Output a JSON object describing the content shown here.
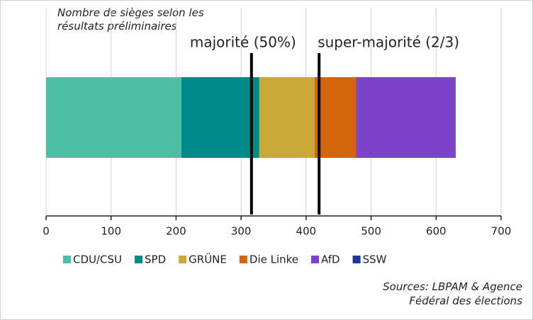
{
  "chart_data": {
    "type": "stacked-barh",
    "title": "Nombre de sièges selon les résultats préliminaires",
    "source": "Sources: LBPAM & Agence Fédéral des élections",
    "series": [
      {
        "name": "CDU/CSU",
        "color": "#4dbfa5",
        "values": [
          208
        ]
      },
      {
        "name": "SPD",
        "color": "#008b8b",
        "values": [
          120
        ]
      },
      {
        "name": "GRÜNE",
        "color": "#c9a838",
        "values": [
          85
        ]
      },
      {
        "name": "Die Linke",
        "color": "#d4650b",
        "values": [
          64
        ]
      },
      {
        "name": "AfD",
        "color": "#7b44c8",
        "values": [
          152
        ]
      },
      {
        "name": "SSW",
        "color": "#1b3a9c",
        "values": [
          1
        ]
      }
    ],
    "reference_lines": [
      {
        "value": 316,
        "label": "majorité (50%)"
      },
      {
        "value": 420,
        "label": "super-majorité (2/3)"
      }
    ],
    "xlim": [
      0,
      700
    ],
    "xticks": [
      0,
      100,
      200,
      300,
      400,
      500,
      600,
      700
    ],
    "grid": true
  }
}
